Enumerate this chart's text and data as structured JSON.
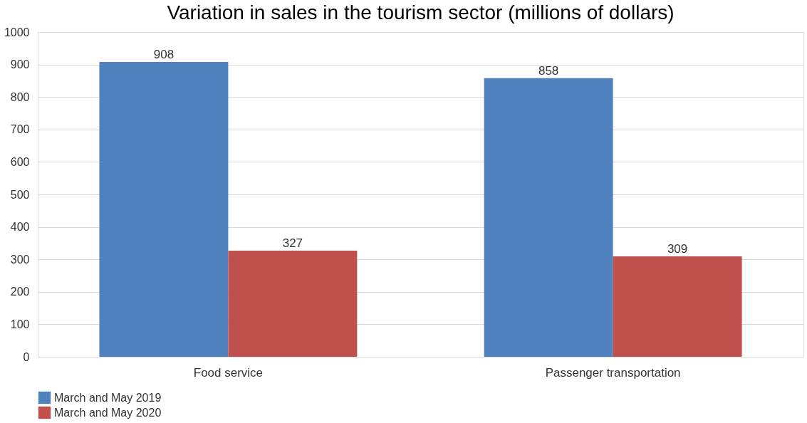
{
  "chart_data": {
    "type": "bar",
    "title": "Variation in sales in the tourism sector (millions of dollars)",
    "categories": [
      "Food service",
      "Passenger transportation"
    ],
    "series": [
      {
        "name": "March and May 2019",
        "color": "#4f81bd",
        "values": [
          908,
          858
        ]
      },
      {
        "name": "March and May 2020",
        "color": "#c0504d",
        "values": [
          327,
          309
        ]
      }
    ],
    "ylim": [
      0,
      1000
    ],
    "yticks": [
      0,
      100,
      200,
      300,
      400,
      500,
      600,
      700,
      800,
      900,
      1000
    ],
    "grid": "y",
    "legend": "bottom",
    "data_labels": true
  }
}
